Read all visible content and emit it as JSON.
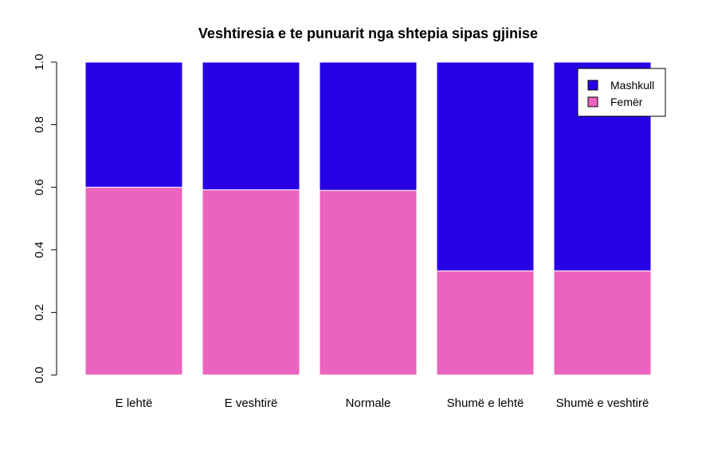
{
  "chart_data": {
    "type": "bar",
    "stacked": true,
    "title": "Veshtiresia e te punuarit nga shtepia sipas gjinise",
    "xlabel": "",
    "ylabel": "",
    "categories": [
      "E lehtë",
      "E veshtirë",
      "Normale",
      "Shumë e lehtë",
      "Shumë e veshtirë"
    ],
    "series": [
      {
        "name": "Femër",
        "color": "#EC63BF",
        "values": [
          0.6,
          0.592,
          0.59,
          0.333,
          0.333
        ]
      },
      {
        "name": "Mashkull",
        "color": "#2800E5",
        "values": [
          0.4,
          0.408,
          0.41,
          0.667,
          0.667
        ]
      }
    ],
    "ylim": [
      0,
      1
    ],
    "yticks": [
      "0.0",
      "0.2",
      "0.4",
      "0.6",
      "0.8",
      "1.0"
    ],
    "grid": false,
    "legend": {
      "position": "top-right",
      "entries": [
        {
          "label": "Mashkull",
          "color": "#2800E5"
        },
        {
          "label": "Femër",
          "color": "#EC63BF"
        }
      ]
    }
  }
}
